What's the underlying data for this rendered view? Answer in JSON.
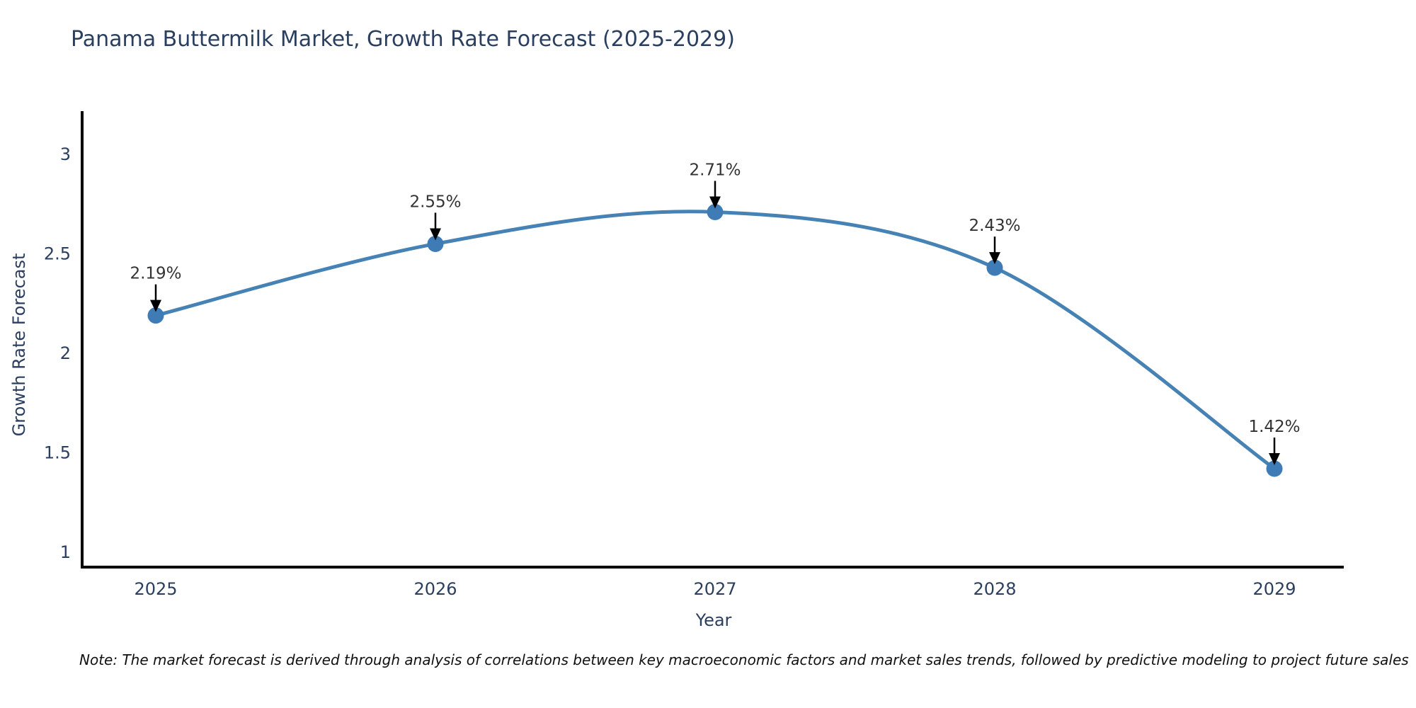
{
  "title": "Panama Buttermilk Market, Growth Rate Forecast (2025-2029)",
  "note": "Note: The market forecast is derived through analysis of correlations between key macroeconomic factors and market sales trends, followed by predictive modeling to project future sales",
  "chart_data": {
    "type": "line",
    "title": "Panama Buttermilk Market, Growth Rate Forecast (2025-2029)",
    "xlabel": "Year",
    "ylabel": "Growth Rate Forecast",
    "categories": [
      "2025",
      "2026",
      "2027",
      "2028",
      "2029"
    ],
    "values": [
      2.19,
      2.55,
      2.71,
      2.43,
      1.42
    ],
    "data_labels": [
      "2.19%",
      "2.55%",
      "2.71%",
      "2.43%",
      "1.42%"
    ],
    "yticks": [
      1,
      1.5,
      2,
      2.5,
      3
    ],
    "ylim": [
      0.92,
      3.3
    ],
    "line_shape": "spline",
    "grid": false,
    "legend": "none",
    "colors": {
      "line": "#4682b4",
      "marker": "#3f7cb6",
      "axis": "#000000",
      "tick_text": "#2a3f5f",
      "annotation_text": "#333333",
      "arrow": "#000000",
      "title_text": "#2a3f5f",
      "background": "#ffffff"
    }
  }
}
